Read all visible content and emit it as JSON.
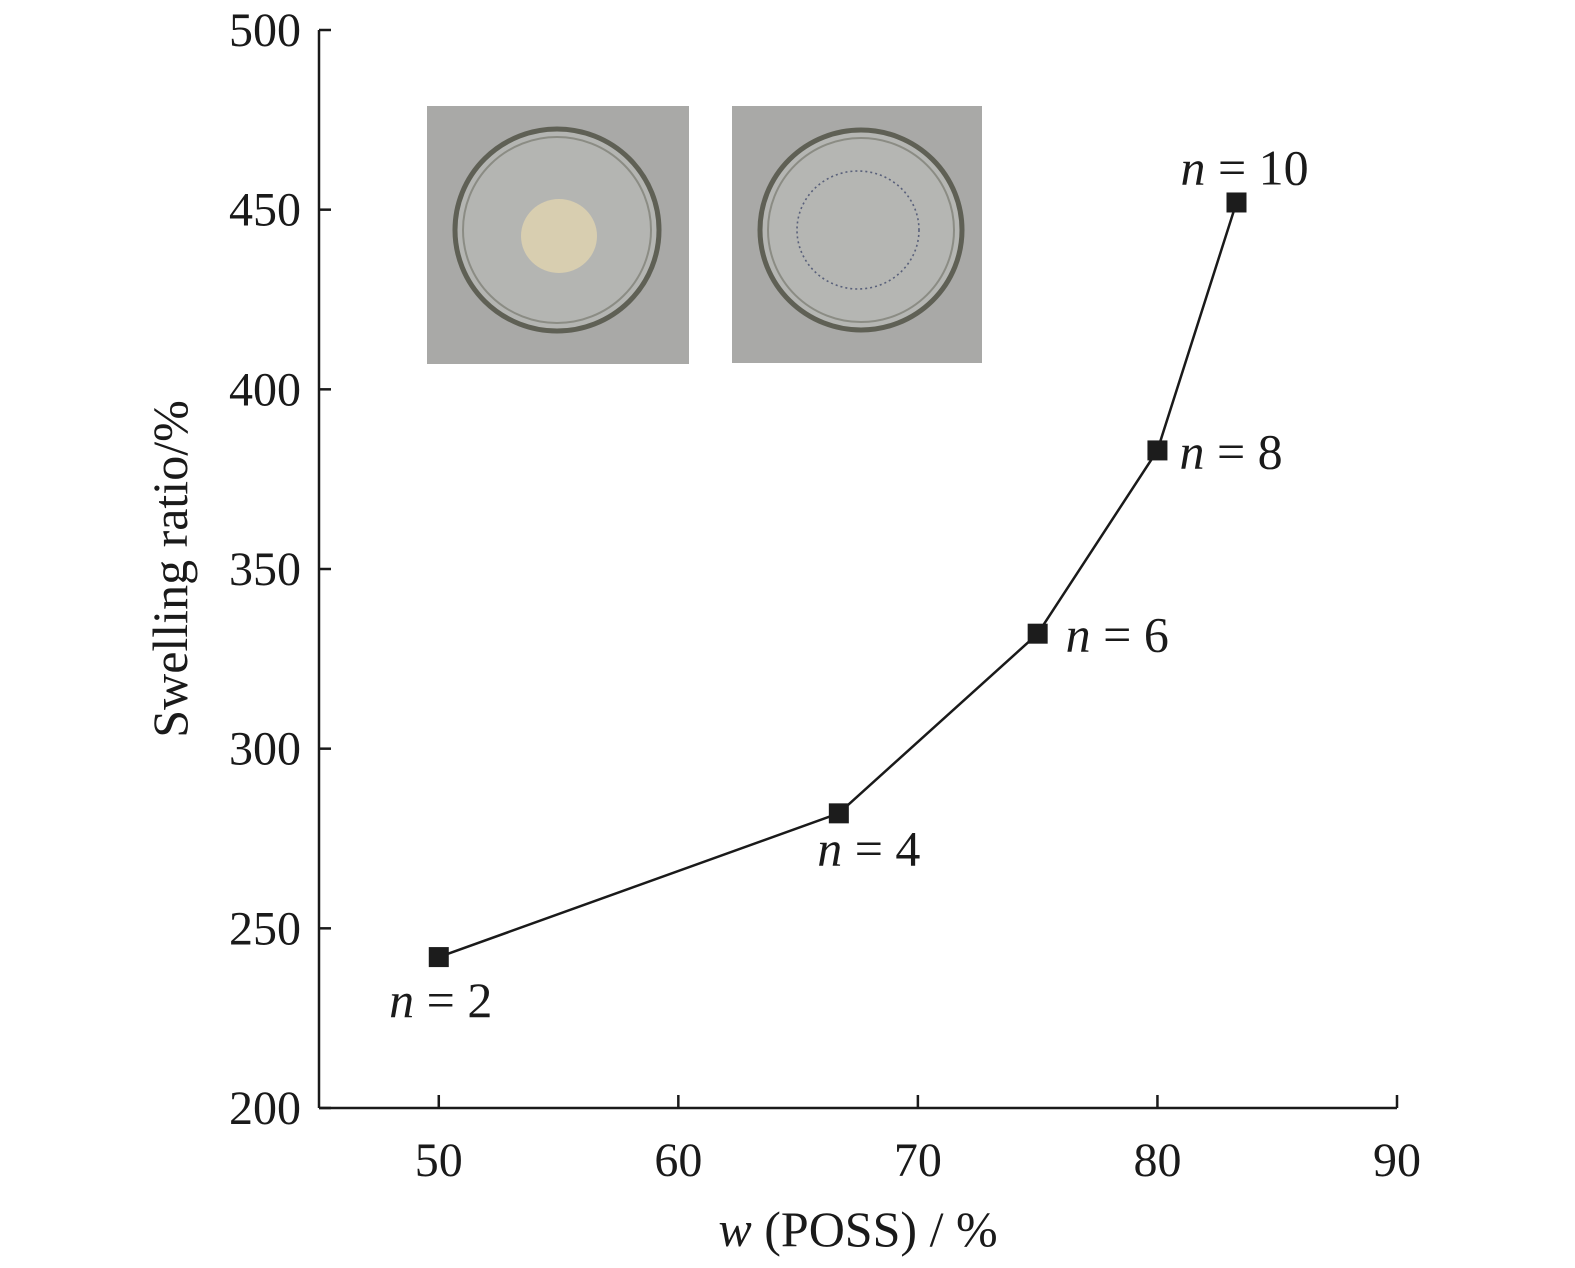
{
  "chart_data": {
    "type": "line",
    "title": "",
    "xlabel_var": "w",
    "xlabel_rest": " (POSS) / %",
    "ylabel": "Swelling ratio/%",
    "xlim": [
      45,
      90
    ],
    "ylim": [
      200,
      500
    ],
    "xticks": [
      50,
      60,
      70,
      80,
      90
    ],
    "yticks": [
      200,
      250,
      300,
      350,
      400,
      450,
      500
    ],
    "grid": false,
    "series": [
      {
        "name": "Swelling ratio",
        "x": [
          50.0,
          66.7,
          75.0,
          80.0,
          83.3
        ],
        "y": [
          242,
          282,
          332,
          383,
          452
        ],
        "labels": [
          {
            "var": "n",
            "text": " = 2"
          },
          {
            "var": "n",
            "text": " = 4"
          },
          {
            "var": "n",
            "text": " = 6"
          },
          {
            "var": "n",
            "text": " = 8"
          },
          {
            "var": "n",
            "text": " = 10"
          }
        ]
      }
    ],
    "inset_photos": [
      {
        "name": "petri-dish-with-gel-disc",
        "background": "#a9a9a7",
        "dish_rim": "#5f6055",
        "gel_color": "#d8ceb0"
      },
      {
        "name": "petri-dish-swollen-gel",
        "background": "#a9a9a7",
        "dish_rim": "#5f6055",
        "gel_outline": "#59607a"
      }
    ]
  }
}
